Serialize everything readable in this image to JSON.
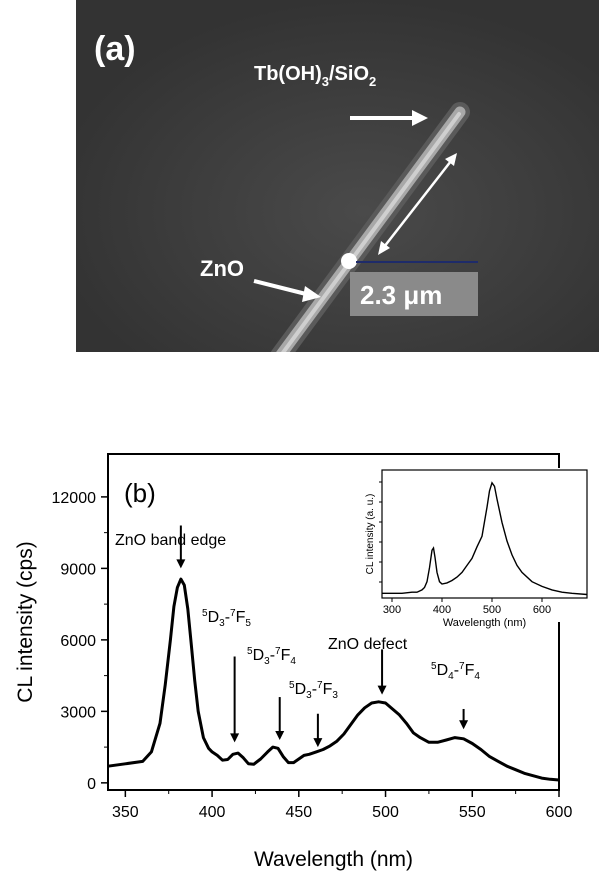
{
  "panel_a": {
    "label": "(a)",
    "tip_label": "Tb(OH)",
    "tip_sub1": "3",
    "tip_mid": "/SiO",
    "tip_sub2": "2",
    "base_label": "ZnO",
    "scale_label": "2.3 μm"
  },
  "panel_b": {
    "label": "(b)",
    "annotations": {
      "band_edge": "ZnO band edge",
      "defect": "ZnO defect",
      "f5": {
        "a": "5",
        "b": "D",
        "c": "3",
        "d": "-",
        "e": "7",
        "f": "F",
        "g": "5"
      },
      "f4": {
        "a": "5",
        "b": "D",
        "c": "3",
        "d": "-",
        "e": "7",
        "f": "F",
        "g": "4"
      },
      "f3": {
        "a": "5",
        "b": "D",
        "c": "3",
        "d": "-",
        "e": "7",
        "f": "F",
        "g": "3"
      },
      "d4f4": {
        "a": "5",
        "b": "D",
        "c": "4",
        "d": "-",
        "e": "7",
        "f": "F",
        "g": "4"
      }
    }
  },
  "chart_data": [
    {
      "type": "line",
      "panel": "b",
      "xlabel": "Wavelength (nm)",
      "ylabel": "CL intensity (cps)",
      "xlim": [
        340,
        600
      ],
      "ylim": [
        -300,
        13800
      ],
      "xticks": [
        350,
        400,
        450,
        500,
        550,
        600
      ],
      "yticks": [
        0,
        3000,
        6000,
        9000,
        12000
      ],
      "x": [
        340,
        350,
        360,
        365,
        370,
        373,
        376,
        378,
        380,
        382,
        384,
        386,
        388,
        390,
        392,
        395,
        398,
        400,
        403,
        406,
        409,
        412,
        415,
        418,
        421,
        424,
        428,
        432,
        435,
        438,
        441,
        444,
        447,
        450,
        453,
        456,
        460,
        464,
        468,
        472,
        476,
        480,
        484,
        488,
        492,
        496,
        500,
        504,
        508,
        512,
        516,
        520,
        525,
        530,
        535,
        540,
        545,
        550,
        555,
        560,
        565,
        570,
        575,
        580,
        585,
        590,
        595,
        600
      ],
      "y": [
        700,
        800,
        900,
        1300,
        2500,
        4100,
        6000,
        7400,
        8200,
        8550,
        8300,
        7300,
        5800,
        4300,
        3000,
        1900,
        1450,
        1300,
        1150,
        950,
        980,
        1200,
        1250,
        1050,
        800,
        780,
        1000,
        1300,
        1500,
        1450,
        1100,
        850,
        850,
        1000,
        1150,
        1200,
        1300,
        1400,
        1550,
        1750,
        2050,
        2450,
        2850,
        3150,
        3350,
        3400,
        3350,
        3100,
        2850,
        2500,
        2100,
        1900,
        1700,
        1700,
        1800,
        1900,
        1850,
        1650,
        1400,
        1100,
        900,
        700,
        550,
        400,
        300,
        200,
        150,
        120
      ]
    },
    {
      "type": "line",
      "panel": "b-inset",
      "xlabel": "Wavelength (nm)",
      "ylabel": "CL intensity (a. u.)",
      "xlim": [
        280,
        690
      ],
      "ylim": [
        0,
        1.1
      ],
      "xticks": [
        300,
        400,
        500,
        600
      ],
      "x": [
        280,
        300,
        320,
        340,
        350,
        360,
        365,
        370,
        375,
        380,
        383,
        386,
        390,
        395,
        400,
        410,
        420,
        430,
        440,
        450,
        460,
        470,
        480,
        490,
        495,
        500,
        505,
        510,
        520,
        530,
        540,
        550,
        560,
        580,
        600,
        620,
        640,
        660,
        690
      ],
      "y": [
        0.04,
        0.04,
        0.04,
        0.05,
        0.05,
        0.07,
        0.09,
        0.14,
        0.26,
        0.41,
        0.43,
        0.35,
        0.22,
        0.14,
        0.12,
        0.13,
        0.15,
        0.18,
        0.22,
        0.28,
        0.34,
        0.44,
        0.53,
        0.78,
        0.92,
        0.99,
        0.96,
        0.85,
        0.65,
        0.49,
        0.37,
        0.28,
        0.22,
        0.14,
        0.1,
        0.07,
        0.05,
        0.04,
        0.03
      ]
    }
  ]
}
